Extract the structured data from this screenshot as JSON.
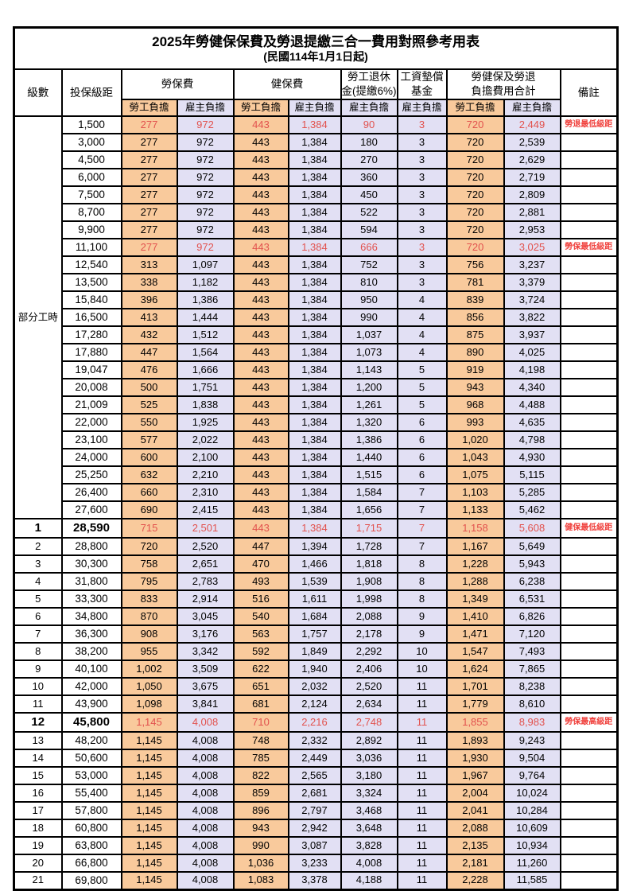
{
  "title": "2025年勞健保保費及勞退提繳三合一費用對照參考用表",
  "subtitle": "(民國114年1月1日起)",
  "colors": {
    "employee_fill": "#F9CA9C",
    "employer_fill": "#E2E0F4",
    "highlight_value_text": "#E2524E",
    "remark_text": "#F0413D",
    "border": "#000000"
  },
  "header": {
    "level": "級數",
    "bracket": "投保級距",
    "labor": "勞保費",
    "health": "健保費",
    "pension_line1": "勞工退休",
    "pension_line2": "金(提繳6%)",
    "wage_fund_line1": "工資墊償",
    "wage_fund_line2": "基金",
    "total_line1": "勞健保及勞退",
    "total_line2": "負擔費用合計",
    "employee": "勞工負擔",
    "employer": "雇主負擔",
    "remark": "備註"
  },
  "part_time": {
    "label": "部分工時",
    "span": 23
  },
  "rows": [
    {
      "level": "",
      "bracket": "1,500",
      "values": [
        "277",
        "972",
        "443",
        "1,384",
        "90",
        "3",
        "720",
        "2,449"
      ],
      "remark": "勞退最低級距",
      "red": true,
      "emph": false
    },
    {
      "level": "",
      "bracket": "3,000",
      "values": [
        "277",
        "972",
        "443",
        "1,384",
        "180",
        "3",
        "720",
        "2,539"
      ],
      "remark": "",
      "red": false,
      "emph": false
    },
    {
      "level": "",
      "bracket": "4,500",
      "values": [
        "277",
        "972",
        "443",
        "1,384",
        "270",
        "3",
        "720",
        "2,629"
      ],
      "remark": "",
      "red": false,
      "emph": false
    },
    {
      "level": "",
      "bracket": "6,000",
      "values": [
        "277",
        "972",
        "443",
        "1,384",
        "360",
        "3",
        "720",
        "2,719"
      ],
      "remark": "",
      "red": false,
      "emph": false
    },
    {
      "level": "",
      "bracket": "7,500",
      "values": [
        "277",
        "972",
        "443",
        "1,384",
        "450",
        "3",
        "720",
        "2,809"
      ],
      "remark": "",
      "red": false,
      "emph": false
    },
    {
      "level": "",
      "bracket": "8,700",
      "values": [
        "277",
        "972",
        "443",
        "1,384",
        "522",
        "3",
        "720",
        "2,881"
      ],
      "remark": "",
      "red": false,
      "emph": false
    },
    {
      "level": "",
      "bracket": "9,900",
      "values": [
        "277",
        "972",
        "443",
        "1,384",
        "594",
        "3",
        "720",
        "2,953"
      ],
      "remark": "",
      "red": false,
      "emph": false
    },
    {
      "level": "",
      "bracket": "11,100",
      "values": [
        "277",
        "972",
        "443",
        "1,384",
        "666",
        "3",
        "720",
        "3,025"
      ],
      "remark": "勞保最低級距",
      "red": true,
      "emph": false
    },
    {
      "level": "",
      "bracket": "12,540",
      "values": [
        "313",
        "1,097",
        "443",
        "1,384",
        "752",
        "3",
        "756",
        "3,237"
      ],
      "remark": "",
      "red": false,
      "emph": false
    },
    {
      "level": "",
      "bracket": "13,500",
      "values": [
        "338",
        "1,182",
        "443",
        "1,384",
        "810",
        "3",
        "781",
        "3,379"
      ],
      "remark": "",
      "red": false,
      "emph": false
    },
    {
      "level": "",
      "bracket": "15,840",
      "values": [
        "396",
        "1,386",
        "443",
        "1,384",
        "950",
        "4",
        "839",
        "3,724"
      ],
      "remark": "",
      "red": false,
      "emph": false
    },
    {
      "level": "",
      "bracket": "16,500",
      "values": [
        "413",
        "1,444",
        "443",
        "1,384",
        "990",
        "4",
        "856",
        "3,822"
      ],
      "remark": "",
      "red": false,
      "emph": false
    },
    {
      "level": "",
      "bracket": "17,280",
      "values": [
        "432",
        "1,512",
        "443",
        "1,384",
        "1,037",
        "4",
        "875",
        "3,937"
      ],
      "remark": "",
      "red": false,
      "emph": false
    },
    {
      "level": "",
      "bracket": "17,880",
      "values": [
        "447",
        "1,564",
        "443",
        "1,384",
        "1,073",
        "4",
        "890",
        "4,025"
      ],
      "remark": "",
      "red": false,
      "emph": false
    },
    {
      "level": "",
      "bracket": "19,047",
      "values": [
        "476",
        "1,666",
        "443",
        "1,384",
        "1,143",
        "5",
        "919",
        "4,198"
      ],
      "remark": "",
      "red": false,
      "emph": false
    },
    {
      "level": "",
      "bracket": "20,008",
      "values": [
        "500",
        "1,751",
        "443",
        "1,384",
        "1,200",
        "5",
        "943",
        "4,340"
      ],
      "remark": "",
      "red": false,
      "emph": false
    },
    {
      "level": "",
      "bracket": "21,009",
      "values": [
        "525",
        "1,838",
        "443",
        "1,384",
        "1,261",
        "5",
        "968",
        "4,488"
      ],
      "remark": "",
      "red": false,
      "emph": false
    },
    {
      "level": "",
      "bracket": "22,000",
      "values": [
        "550",
        "1,925",
        "443",
        "1,384",
        "1,320",
        "6",
        "993",
        "4,635"
      ],
      "remark": "",
      "red": false,
      "emph": false
    },
    {
      "level": "",
      "bracket": "23,100",
      "values": [
        "577",
        "2,022",
        "443",
        "1,384",
        "1,386",
        "6",
        "1,020",
        "4,798"
      ],
      "remark": "",
      "red": false,
      "emph": false
    },
    {
      "level": "",
      "bracket": "24,000",
      "values": [
        "600",
        "2,100",
        "443",
        "1,384",
        "1,440",
        "6",
        "1,043",
        "4,930"
      ],
      "remark": "",
      "red": false,
      "emph": false
    },
    {
      "level": "",
      "bracket": "25,250",
      "values": [
        "632",
        "2,210",
        "443",
        "1,384",
        "1,515",
        "6",
        "1,075",
        "5,115"
      ],
      "remark": "",
      "red": false,
      "emph": false
    },
    {
      "level": "",
      "bracket": "26,400",
      "values": [
        "660",
        "2,310",
        "443",
        "1,384",
        "1,584",
        "7",
        "1,103",
        "5,285"
      ],
      "remark": "",
      "red": false,
      "emph": false
    },
    {
      "level": "",
      "bracket": "27,600",
      "values": [
        "690",
        "2,415",
        "443",
        "1,384",
        "1,656",
        "7",
        "1,133",
        "5,462"
      ],
      "remark": "",
      "red": false,
      "emph": false
    },
    {
      "level": "1",
      "bracket": "28,590",
      "values": [
        "715",
        "2,501",
        "443",
        "1,384",
        "1,715",
        "7",
        "1,158",
        "5,608"
      ],
      "remark": "健保最低級距",
      "red": true,
      "emph": true
    },
    {
      "level": "2",
      "bracket": "28,800",
      "values": [
        "720",
        "2,520",
        "447",
        "1,394",
        "1,728",
        "7",
        "1,167",
        "5,649"
      ],
      "remark": "",
      "red": false,
      "emph": false
    },
    {
      "level": "3",
      "bracket": "30,300",
      "values": [
        "758",
        "2,651",
        "470",
        "1,466",
        "1,818",
        "8",
        "1,228",
        "5,943"
      ],
      "remark": "",
      "red": false,
      "emph": false
    },
    {
      "level": "4",
      "bracket": "31,800",
      "values": [
        "795",
        "2,783",
        "493",
        "1,539",
        "1,908",
        "8",
        "1,288",
        "6,238"
      ],
      "remark": "",
      "red": false,
      "emph": false
    },
    {
      "level": "5",
      "bracket": "33,300",
      "values": [
        "833",
        "2,914",
        "516",
        "1,611",
        "1,998",
        "8",
        "1,349",
        "6,531"
      ],
      "remark": "",
      "red": false,
      "emph": false
    },
    {
      "level": "6",
      "bracket": "34,800",
      "values": [
        "870",
        "3,045",
        "540",
        "1,684",
        "2,088",
        "9",
        "1,410",
        "6,826"
      ],
      "remark": "",
      "red": false,
      "emph": false
    },
    {
      "level": "7",
      "bracket": "36,300",
      "values": [
        "908",
        "3,176",
        "563",
        "1,757",
        "2,178",
        "9",
        "1,471",
        "7,120"
      ],
      "remark": "",
      "red": false,
      "emph": false
    },
    {
      "level": "8",
      "bracket": "38,200",
      "values": [
        "955",
        "3,342",
        "592",
        "1,849",
        "2,292",
        "10",
        "1,547",
        "7,493"
      ],
      "remark": "",
      "red": false,
      "emph": false
    },
    {
      "level": "9",
      "bracket": "40,100",
      "values": [
        "1,002",
        "3,509",
        "622",
        "1,940",
        "2,406",
        "10",
        "1,624",
        "7,865"
      ],
      "remark": "",
      "red": false,
      "emph": false
    },
    {
      "level": "10",
      "bracket": "42,000",
      "values": [
        "1,050",
        "3,675",
        "651",
        "2,032",
        "2,520",
        "11",
        "1,701",
        "8,238"
      ],
      "remark": "",
      "red": false,
      "emph": false
    },
    {
      "level": "11",
      "bracket": "43,900",
      "values": [
        "1,098",
        "3,841",
        "681",
        "2,124",
        "2,634",
        "11",
        "1,779",
        "8,610"
      ],
      "remark": "",
      "red": false,
      "emph": false
    },
    {
      "level": "12",
      "bracket": "45,800",
      "values": [
        "1,145",
        "4,008",
        "710",
        "2,216",
        "2,748",
        "11",
        "1,855",
        "8,983"
      ],
      "remark": "勞保最高級距",
      "red": true,
      "emph": true
    },
    {
      "level": "13",
      "bracket": "48,200",
      "values": [
        "1,145",
        "4,008",
        "748",
        "2,332",
        "2,892",
        "11",
        "1,893",
        "9,243"
      ],
      "remark": "",
      "red": false,
      "emph": false
    },
    {
      "level": "14",
      "bracket": "50,600",
      "values": [
        "1,145",
        "4,008",
        "785",
        "2,449",
        "3,036",
        "11",
        "1,930",
        "9,504"
      ],
      "remark": "",
      "red": false,
      "emph": false
    },
    {
      "level": "15",
      "bracket": "53,000",
      "values": [
        "1,145",
        "4,008",
        "822",
        "2,565",
        "3,180",
        "11",
        "1,967",
        "9,764"
      ],
      "remark": "",
      "red": false,
      "emph": false
    },
    {
      "level": "16",
      "bracket": "55,400",
      "values": [
        "1,145",
        "4,008",
        "859",
        "2,681",
        "3,324",
        "11",
        "2,004",
        "10,024"
      ],
      "remark": "",
      "red": false,
      "emph": false
    },
    {
      "level": "17",
      "bracket": "57,800",
      "values": [
        "1,145",
        "4,008",
        "896",
        "2,797",
        "3,468",
        "11",
        "2,041",
        "10,284"
      ],
      "remark": "",
      "red": false,
      "emph": false
    },
    {
      "level": "18",
      "bracket": "60,800",
      "values": [
        "1,145",
        "4,008",
        "943",
        "2,942",
        "3,648",
        "11",
        "2,088",
        "10,609"
      ],
      "remark": "",
      "red": false,
      "emph": false
    },
    {
      "level": "19",
      "bracket": "63,800",
      "values": [
        "1,145",
        "4,008",
        "990",
        "3,087",
        "3,828",
        "11",
        "2,135",
        "10,934"
      ],
      "remark": "",
      "red": false,
      "emph": false
    },
    {
      "level": "20",
      "bracket": "66,800",
      "values": [
        "1,145",
        "4,008",
        "1,036",
        "3,233",
        "4,008",
        "11",
        "2,181",
        "11,260"
      ],
      "remark": "",
      "red": false,
      "emph": false
    },
    {
      "level": "21",
      "bracket": "69,800",
      "values": [
        "1,145",
        "4,008",
        "1,083",
        "3,378",
        "4,188",
        "11",
        "2,228",
        "11,585"
      ],
      "remark": "",
      "red": false,
      "emph": false
    }
  ]
}
